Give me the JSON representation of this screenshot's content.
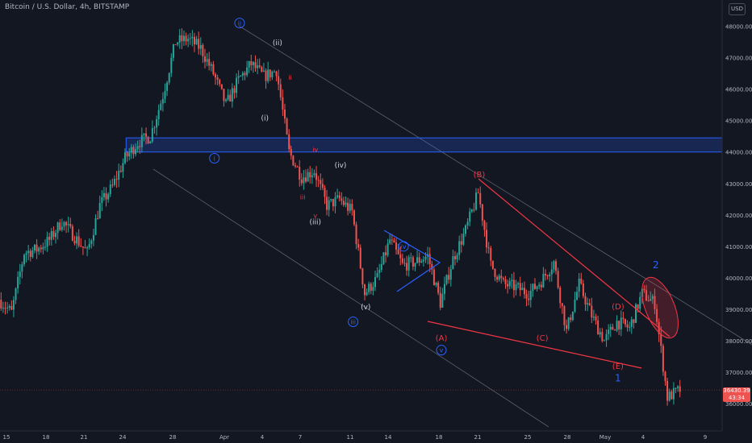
{
  "header": {
    "title": "Bitcoin / U.S. Dollar, 4h, BITSTAMP",
    "currency": "USD"
  },
  "price_tag": {
    "price": "36430.39",
    "countdown": "43:34"
  },
  "colors": {
    "background": "#131722",
    "bull": "#26a69a",
    "bear": "#ef5350",
    "wave_blue": "#2962ff",
    "wave_red": "#f23645",
    "wave_white": "#d1d4dc",
    "channel": "#5d606b",
    "axis_text": "#b2b5be"
  },
  "chart_data": {
    "type": "candlestick",
    "symbol": "BTCUSD",
    "exchange": "BITSTAMP",
    "interval": "4h",
    "x_axis": {
      "range": [
        "2022-03-14",
        "2022-05-10"
      ],
      "tick_labels": [
        "15",
        "18",
        "21",
        "24",
        "28",
        "Apr",
        "4",
        "7",
        "11",
        "14",
        "18",
        "21",
        "25",
        "28",
        "May",
        "4",
        "9"
      ]
    },
    "y_axis": {
      "side": "right",
      "range": [
        35500,
        48400
      ],
      "tick_labels": [
        "36000.00",
        "37000.00",
        "38000.00",
        "39000.00",
        "40000.00",
        "41000.00",
        "42000.00",
        "43000.00",
        "44000.00",
        "45000.00",
        "46000.00",
        "47000.00",
        "48000.00"
      ]
    },
    "grid": false,
    "price_path": [
      [
        "2022-03-14",
        39300
      ],
      [
        "2022-03-15",
        38900
      ],
      [
        "2022-03-16",
        40800
      ],
      [
        "2022-03-17",
        40900
      ],
      [
        "2022-03-18",
        41200
      ],
      [
        "2022-03-19",
        41800
      ],
      [
        "2022-03-20",
        41300
      ],
      [
        "2022-03-21",
        40800
      ],
      [
        "2022-03-22",
        42300
      ],
      [
        "2022-03-23",
        42900
      ],
      [
        "2022-03-24",
        43800
      ],
      [
        "2022-03-25",
        44300
      ],
      [
        "2022-03-26",
        44500
      ],
      [
        "2022-03-27",
        45800
      ],
      [
        "2022-03-28",
        47500
      ],
      [
        "2022-03-29",
        47600
      ],
      [
        "2022-03-30",
        47300
      ],
      [
        "2022-03-31",
        46500
      ],
      [
        "2022-04-01",
        45500
      ],
      [
        "2022-04-02",
        46300
      ],
      [
        "2022-04-03",
        46800
      ],
      [
        "2022-04-04",
        46400
      ],
      [
        "2022-04-05",
        46600
      ],
      [
        "2022-04-06",
        44000
      ],
      [
        "2022-04-07",
        43200
      ],
      [
        "2022-04-08",
        43400
      ],
      [
        "2022-04-09",
        42300
      ],
      [
        "2022-04-10",
        42500
      ],
      [
        "2022-04-11",
        42100
      ],
      [
        "2022-04-12",
        39500
      ],
      [
        "2022-04-13",
        40000
      ],
      [
        "2022-04-14",
        41200
      ],
      [
        "2022-04-15",
        40400
      ],
      [
        "2022-04-16",
        40500
      ],
      [
        "2022-04-17",
        40700
      ],
      [
        "2022-04-18",
        39200
      ],
      [
        "2022-04-19",
        40600
      ],
      [
        "2022-04-20",
        41500
      ],
      [
        "2022-04-21",
        42700
      ],
      [
        "2022-04-22",
        40400
      ],
      [
        "2022-04-23",
        39800
      ],
      [
        "2022-04-24",
        39700
      ],
      [
        "2022-04-25",
        39500
      ],
      [
        "2022-04-26",
        39900
      ],
      [
        "2022-04-27",
        40500
      ],
      [
        "2022-04-28",
        38300
      ],
      [
        "2022-04-29",
        39800
      ],
      [
        "2022-04-30",
        38800
      ],
      [
        "2022-05-01",
        38000
      ],
      [
        "2022-05-02",
        38600
      ],
      [
        "2022-05-03",
        38400
      ],
      [
        "2022-05-04",
        39500
      ],
      [
        "2022-05-05",
        39200
      ],
      [
        "2022-05-06",
        36200
      ],
      [
        "2022-05-07",
        36430
      ]
    ],
    "horizontal_zone": {
      "from": "2022-03-24",
      "low": 44000,
      "high": 44450
    },
    "annotations": {
      "blue_waves": [
        {
          "label": "i",
          "date": "2022-03-31",
          "price": 43800
        },
        {
          "label": "ii",
          "date": "2022-04-02",
          "price": 48100
        },
        {
          "label": "iii",
          "date": "2022-04-11",
          "price": 38600
        },
        {
          "label": "iv",
          "date": "2022-04-15",
          "price": 41000
        },
        {
          "label": "v",
          "date": "2022-04-18",
          "price": 37700
        }
      ],
      "white_waves": [
        {
          "label": "(i)",
          "date": "2022-04-04",
          "price": 45000
        },
        {
          "label": "(ii)",
          "date": "2022-04-05",
          "price": 47400
        },
        {
          "label": "(iii)",
          "date": "2022-04-08",
          "price": 41700
        },
        {
          "label": "(iv)",
          "date": "2022-04-10",
          "price": 43500
        },
        {
          "label": "(v)",
          "date": "2022-04-12",
          "price": 39000
        }
      ],
      "small_red_waves": [
        {
          "label": "i",
          "date": "2022-04-06",
          "price": 44100
        },
        {
          "label": "ii",
          "date": "2022-04-06",
          "price": 46300
        },
        {
          "label": "iii",
          "date": "2022-04-07",
          "price": 42500
        },
        {
          "label": "iv",
          "date": "2022-04-08",
          "price": 44000
        },
        {
          "label": "v",
          "date": "2022-04-08",
          "price": 41900
        }
      ],
      "abcde_waves": [
        {
          "label": "(A)",
          "date": "2022-04-18",
          "price": 38000
        },
        {
          "label": "(B)",
          "date": "2022-04-21",
          "price": 43200
        },
        {
          "label": "(C)",
          "date": "2022-04-26",
          "price": 38000
        },
        {
          "label": "(D)",
          "date": "2022-05-02",
          "price": 39000
        },
        {
          "label": "(E)",
          "date": "2022-05-02",
          "price": 37100
        }
      ],
      "impulse_labels": [
        {
          "label": "1",
          "date": "2022-05-02",
          "price": 36700
        },
        {
          "label": "2",
          "date": "2022-05-05",
          "price": 40300
        }
      ]
    }
  }
}
